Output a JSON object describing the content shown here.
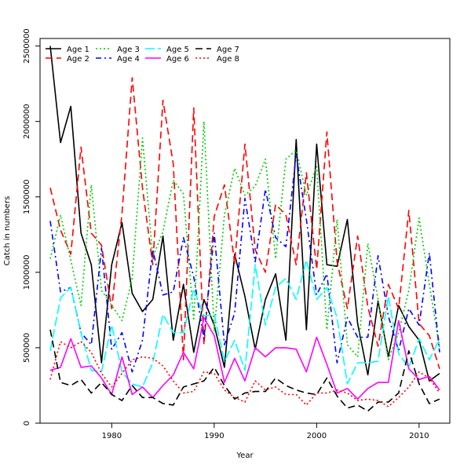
{
  "chart_data": {
    "type": "line",
    "title": "",
    "xlabel": "Year",
    "ylabel": "Catch in numbers",
    "xlim": [
      1973,
      2013
    ],
    "ylim": [
      0,
      2550000
    ],
    "x_ticks": [
      1980,
      1990,
      2000,
      2010
    ],
    "y_ticks": [
      0,
      500000,
      1000000,
      1500000,
      2000000,
      2500000
    ],
    "grid": false,
    "legend_position": "top-left",
    "x": [
      1974,
      1975,
      1976,
      1977,
      1978,
      1979,
      1980,
      1981,
      1982,
      1983,
      1984,
      1985,
      1986,
      1987,
      1988,
      1989,
      1990,
      1991,
      1992,
      1993,
      1994,
      1995,
      1996,
      1997,
      1998,
      1999,
      2000,
      2001,
      2002,
      2003,
      2004,
      2005,
      2006,
      2007,
      2008,
      2009,
      2010,
      2011,
      2012
    ],
    "series": [
      {
        "name": "Age 1",
        "color": "#000000",
        "dash": "solid",
        "values": [
          2500000,
          1860000,
          2100000,
          1260000,
          1050000,
          400000,
          1050000,
          1330000,
          860000,
          740000,
          820000,
          1240000,
          550000,
          920000,
          470000,
          820000,
          650000,
          370000,
          1120000,
          840000,
          490000,
          820000,
          990000,
          550000,
          1880000,
          620000,
          1850000,
          1050000,
          1040000,
          1350000,
          660000,
          320000,
          810000,
          440000,
          780000,
          640000,
          550000,
          280000,
          330000
        ]
      },
      {
        "name": "Age 2",
        "color": "#ff0000",
        "dash": "long",
        "values": [
          1560000,
          1280000,
          1120000,
          1830000,
          1260000,
          1180000,
          760000,
          1390000,
          2290000,
          1560000,
          1050000,
          2140000,
          1720000,
          420000,
          2090000,
          520000,
          1370000,
          1580000,
          1060000,
          1850000,
          1150000,
          1000000,
          1450000,
          1380000,
          1050000,
          1660000,
          1020000,
          1930000,
          1070000,
          760000,
          1240000,
          770000,
          510000,
          920000,
          760000,
          1410000,
          660000,
          580000,
          360000
        ]
      },
      {
        "name": "Age 3",
        "color": "#00cd00",
        "dash": "dotted",
        "values": [
          1090000,
          1380000,
          1080000,
          780000,
          1580000,
          880000,
          780000,
          680000,
          960000,
          1890000,
          1100000,
          1270000,
          1610000,
          1520000,
          680000,
          2000000,
          610000,
          1380000,
          1690000,
          1510000,
          1570000,
          1750000,
          1090000,
          1750000,
          1810000,
          1510000,
          1700000,
          620000,
          1350000,
          520000,
          440000,
          1190000,
          820000,
          420000,
          600000,
          880000,
          1360000,
          920000,
          500000
        ]
      },
      {
        "name": "Age 4",
        "color": "#0000ff",
        "dash": "dashdot",
        "values": [
          1340000,
          870000,
          900000,
          600000,
          520000,
          1160000,
          490000,
          600000,
          340000,
          550000,
          1150000,
          850000,
          870000,
          1230000,
          970000,
          560000,
          1260000,
          520000,
          730000,
          1490000,
          1070000,
          1550000,
          1230000,
          1170000,
          1780000,
          1350000,
          850000,
          990000,
          400000,
          700000,
          570000,
          570000,
          1110000,
          710000,
          480000,
          760000,
          650000,
          1130000,
          470000
        ]
      },
      {
        "name": "Age 5",
        "color": "#00ffff",
        "dash": "longdash",
        "values": [
          480000,
          830000,
          900000,
          600000,
          350000,
          340000,
          650000,
          340000,
          260000,
          240000,
          400000,
          720000,
          600000,
          600000,
          890000,
          710000,
          720000,
          410000,
          550000,
          350000,
          1050000,
          650000,
          900000,
          960000,
          820000,
          1080000,
          820000,
          900000,
          700000,
          260000,
          400000,
          400000,
          410000,
          840000,
          460000,
          370000,
          560000,
          420000,
          560000
        ]
      },
      {
        "name": "Age 6",
        "color": "#ff00ff",
        "dash": "solid",
        "values": [
          350000,
          370000,
          560000,
          370000,
          380000,
          300000,
          190000,
          440000,
          190000,
          240000,
          170000,
          250000,
          320000,
          470000,
          360000,
          700000,
          580000,
          270000,
          430000,
          280000,
          500000,
          440000,
          500000,
          500000,
          490000,
          340000,
          570000,
          390000,
          200000,
          230000,
          160000,
          230000,
          270000,
          270000,
          680000,
          360000,
          290000,
          310000,
          220000
        ]
      },
      {
        "name": "Age 7",
        "color": "#000000",
        "dash": "twodash",
        "values": [
          620000,
          270000,
          250000,
          290000,
          200000,
          270000,
          190000,
          150000,
          250000,
          170000,
          170000,
          130000,
          120000,
          240000,
          260000,
          280000,
          370000,
          250000,
          160000,
          200000,
          210000,
          210000,
          300000,
          250000,
          220000,
          200000,
          190000,
          300000,
          180000,
          100000,
          120000,
          80000,
          140000,
          140000,
          200000,
          480000,
          260000,
          130000,
          160000
        ]
      },
      {
        "name": "Age 8",
        "color": "#ff0000",
        "dash": "dots",
        "values": [
          290000,
          540000,
          500000,
          540000,
          470000,
          330000,
          240000,
          330000,
          420000,
          440000,
          430000,
          380000,
          280000,
          200000,
          210000,
          340000,
          330000,
          220000,
          170000,
          140000,
          280000,
          220000,
          240000,
          190000,
          190000,
          120000,
          200000,
          200000,
          220000,
          200000,
          150000,
          160000,
          150000,
          110000,
          170000,
          240000,
          340000,
          300000,
          200000
        ]
      }
    ]
  }
}
